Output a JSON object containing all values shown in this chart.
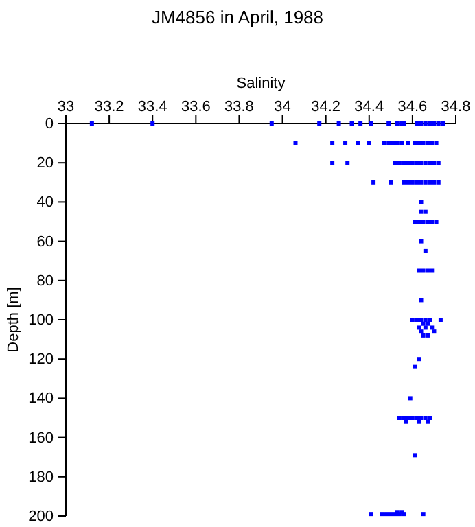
{
  "chart_data": {
    "type": "scatter",
    "title": "JM4856 in April, 1988",
    "xlabel": "Salinity",
    "ylabel": "Depth [m]",
    "xlim": [
      33,
      34.8
    ],
    "xticks": [
      33,
      33.2,
      33.4,
      33.6,
      33.8,
      34,
      34.2,
      34.4,
      34.6,
      34.8
    ],
    "ylim": [
      200,
      0
    ],
    "yticks": [
      0,
      20,
      40,
      60,
      80,
      100,
      120,
      140,
      160,
      180,
      200
    ],
    "grid": false,
    "marker": "square",
    "series": [
      {
        "color": "#0000ff",
        "x": [
          33.12,
          33.4,
          33.95,
          34.17,
          34.26,
          34.32,
          34.36,
          34.41,
          34.49,
          34.53,
          34.55,
          34.56,
          34.62,
          34.64,
          34.66,
          34.68,
          34.7,
          34.72,
          34.74,
          34.06,
          34.23,
          34.29,
          34.35,
          34.4,
          34.47,
          34.49,
          34.51,
          34.53,
          34.55,
          34.58,
          34.61,
          34.63,
          34.65,
          34.67,
          34.69,
          34.71,
          34.23,
          34.3,
          34.52,
          34.54,
          34.56,
          34.58,
          34.6,
          34.62,
          34.64,
          34.66,
          34.68,
          34.7,
          34.72,
          34.42,
          34.5,
          34.56,
          34.58,
          34.6,
          34.62,
          34.64,
          34.66,
          34.68,
          34.7,
          34.72,
          34.64,
          34.64,
          34.66,
          34.61,
          34.63,
          34.65,
          34.67,
          34.69,
          34.71,
          34.64,
          34.66,
          34.63,
          34.65,
          34.67,
          34.69,
          34.64,
          34.6,
          34.62,
          34.64,
          34.66,
          34.68,
          34.73,
          34.65,
          34.67,
          34.63,
          34.66,
          34.69,
          34.64,
          34.7,
          34.65,
          34.67,
          34.63,
          34.61,
          34.59,
          34.54,
          34.56,
          34.58,
          34.6,
          34.62,
          34.64,
          34.66,
          34.68,
          34.57,
          34.63,
          34.67,
          34.61,
          34.41,
          34.46,
          34.48,
          34.5,
          34.52,
          34.54,
          34.56,
          34.65,
          34.53,
          34.55
        ],
        "values": [
          0,
          0,
          0,
          0,
          0,
          0,
          0,
          0,
          0,
          0,
          0,
          0,
          0,
          0,
          0,
          0,
          0,
          0,
          0,
          10,
          10,
          10,
          10,
          10,
          10,
          10,
          10,
          10,
          10,
          10,
          10,
          10,
          10,
          10,
          10,
          10,
          20,
          20,
          20,
          20,
          20,
          20,
          20,
          20,
          20,
          20,
          20,
          20,
          20,
          30,
          30,
          30,
          30,
          30,
          30,
          30,
          30,
          30,
          30,
          30,
          40,
          45,
          45,
          50,
          50,
          50,
          50,
          50,
          50,
          60,
          65,
          75,
          75,
          75,
          75,
          90,
          100,
          100,
          100,
          100,
          100,
          100,
          102,
          102,
          104,
          104,
          104,
          106,
          106,
          108,
          108,
          120,
          124,
          140,
          150,
          150,
          150,
          150,
          150,
          150,
          150,
          150,
          152,
          152,
          152,
          169,
          199,
          199,
          199,
          199,
          199,
          199,
          199,
          199,
          198,
          198
        ]
      }
    ]
  }
}
